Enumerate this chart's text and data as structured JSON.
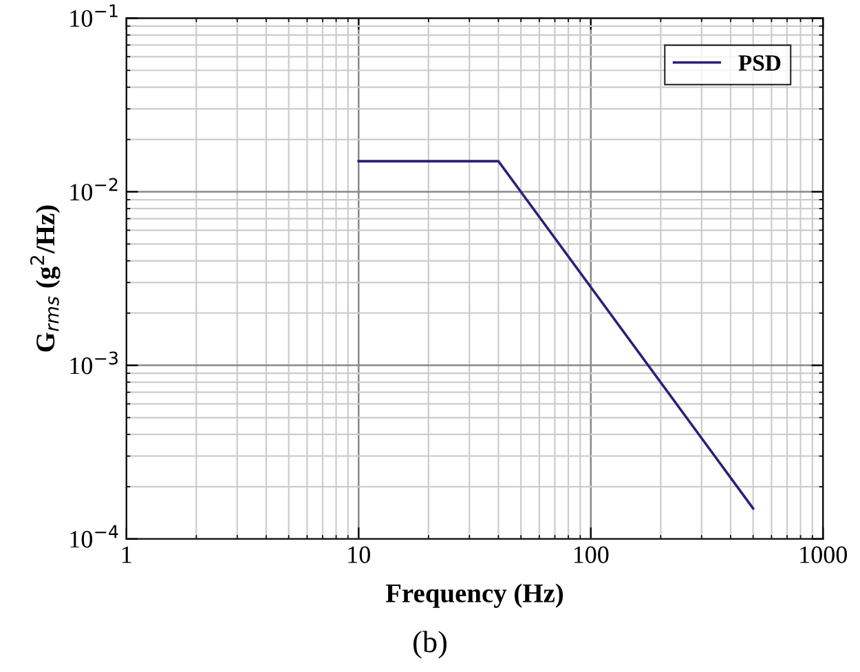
{
  "chart_data": {
    "type": "line",
    "xlabel": "Frequency (Hz)",
    "ylabel": "G$_{rms}$ (g$^{2}$/Hz)",
    "annotations": [
      "(b)"
    ],
    "series": [
      {
        "name": "PSD",
        "color": "#2e1f7a",
        "x": [
          10,
          40,
          500
        ],
        "values": [
          0.015,
          0.015,
          0.00015
        ]
      }
    ],
    "log": "xy",
    "xlim": [
      1,
      1000
    ],
    "ylim": [
      0.0001,
      0.1
    ],
    "xticks": [
      1,
      10,
      100,
      1000
    ],
    "yticks": [
      {
        "value": 0.0001,
        "label": "10$^{−4}$"
      },
      {
        "value": 0.001,
        "label": "10$^{−3}$"
      },
      {
        "value": 0.01,
        "label": "10$^{−2}$"
      },
      {
        "value": 0.1,
        "label": "10$^{−1}$"
      }
    ],
    "grid": true,
    "legend": "top right",
    "line_style": "solid",
    "marker": "none"
  }
}
